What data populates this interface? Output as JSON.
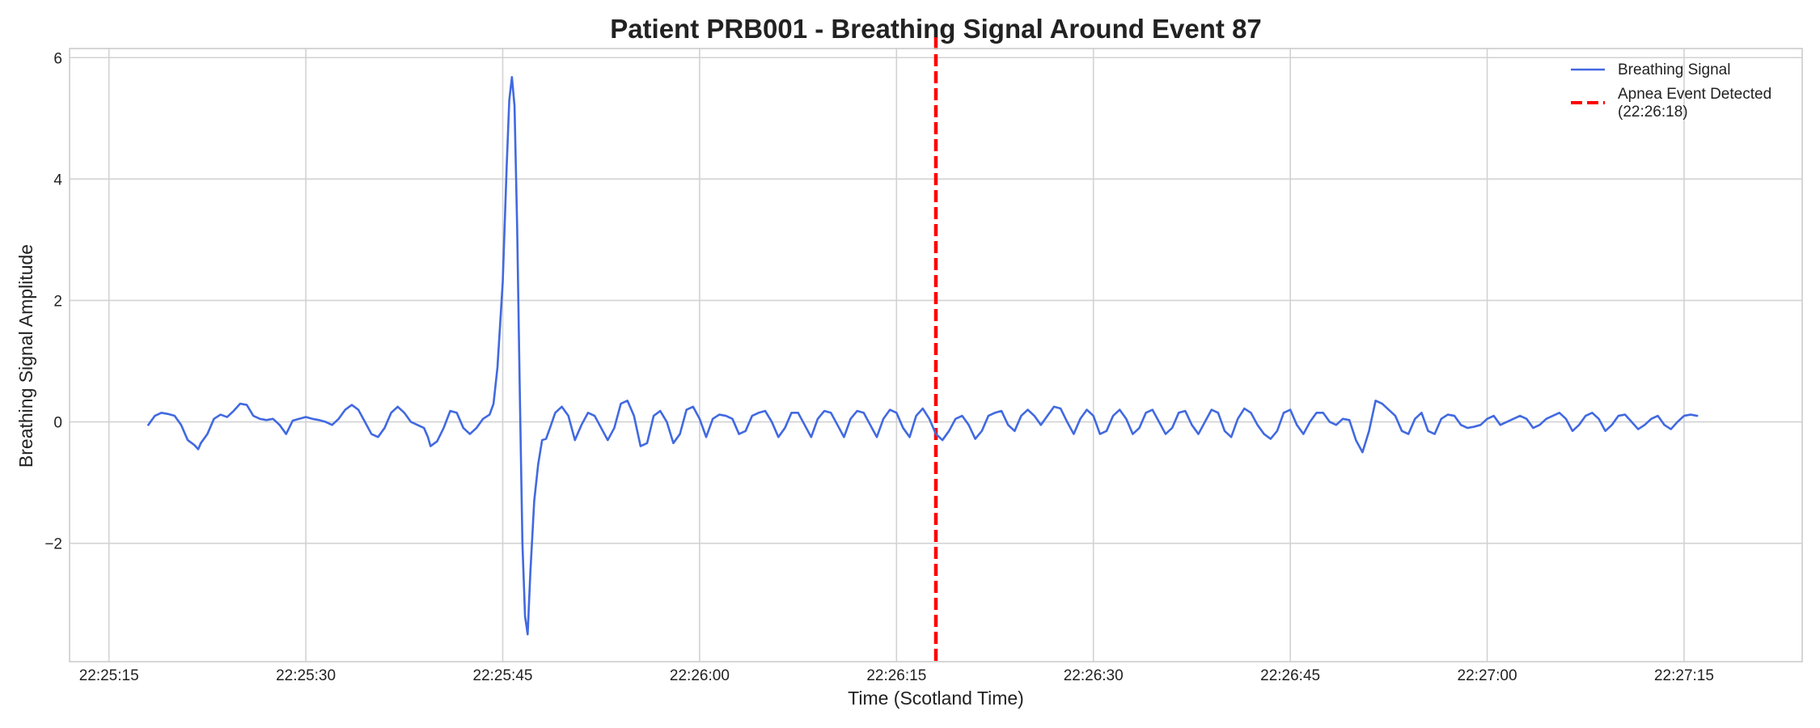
{
  "chart_data": {
    "type": "line",
    "title": "Patient PRB001 - Breathing Signal Around Event 87",
    "xlabel": "Time (Scotland Time)",
    "ylabel": "Breathing Signal Amplitude",
    "x_ticks": [
      "22:25:15",
      "22:25:30",
      "22:25:45",
      "22:26:00",
      "22:26:15",
      "22:26:30",
      "22:26:45",
      "22:27:00",
      "22:27:15"
    ],
    "y_ticks": [
      -2,
      0,
      2,
      4,
      6
    ],
    "y_tick_labels": [
      "−2",
      "0",
      "2",
      "4",
      "6"
    ],
    "xlim": [
      "22:25:12",
      "22:27:24"
    ],
    "ylim": [
      -3.95,
      6.15
    ],
    "grid": true,
    "legend_position": "top-right",
    "series": [
      {
        "name": "Breathing Signal",
        "color": "#4169e1",
        "style": "solid",
        "points": [
          [
            "22:25:18.0",
            -0.05
          ],
          [
            "22:25:18.5",
            0.1
          ],
          [
            "22:25:19.0",
            0.15
          ],
          [
            "22:25:19.5",
            0.13
          ],
          [
            "22:25:20.0",
            0.1
          ],
          [
            "22:25:20.5",
            -0.05
          ],
          [
            "22:25:21.0",
            -0.3
          ],
          [
            "22:25:21.5",
            -0.38
          ],
          [
            "22:25:21.8",
            -0.45
          ],
          [
            "22:25:22.0",
            -0.35
          ],
          [
            "22:25:22.5",
            -0.2
          ],
          [
            "22:25:23.0",
            0.05
          ],
          [
            "22:25:23.5",
            0.12
          ],
          [
            "22:25:24.0",
            0.08
          ],
          [
            "22:25:24.5",
            0.18
          ],
          [
            "22:25:25.0",
            0.3
          ],
          [
            "22:25:25.5",
            0.28
          ],
          [
            "22:25:26.0",
            0.1
          ],
          [
            "22:25:26.5",
            0.05
          ],
          [
            "22:25:27.0",
            0.03
          ],
          [
            "22:25:27.5",
            0.05
          ],
          [
            "22:25:28.0",
            -0.05
          ],
          [
            "22:25:28.5",
            -0.2
          ],
          [
            "22:25:29.0",
            0.02
          ],
          [
            "22:25:29.5",
            0.05
          ],
          [
            "22:25:30.0",
            0.08
          ],
          [
            "22:25:30.5",
            0.05
          ],
          [
            "22:25:31.0",
            0.03
          ],
          [
            "22:25:31.5",
            0.0
          ],
          [
            "22:25:32.0",
            -0.05
          ],
          [
            "22:25:32.5",
            0.05
          ],
          [
            "22:25:33.0",
            0.2
          ],
          [
            "22:25:33.5",
            0.28
          ],
          [
            "22:25:34.0",
            0.2
          ],
          [
            "22:25:34.5",
            0.0
          ],
          [
            "22:25:35.0",
            -0.2
          ],
          [
            "22:25:35.5",
            -0.25
          ],
          [
            "22:25:36.0",
            -0.1
          ],
          [
            "22:25:36.5",
            0.15
          ],
          [
            "22:25:37.0",
            0.25
          ],
          [
            "22:25:37.5",
            0.15
          ],
          [
            "22:25:38.0",
            0.0
          ],
          [
            "22:25:38.5",
            -0.05
          ],
          [
            "22:25:39.0",
            -0.1
          ],
          [
            "22:25:39.3",
            -0.25
          ],
          [
            "22:25:39.5",
            -0.4
          ],
          [
            "22:25:40.0",
            -0.32
          ],
          [
            "22:25:40.5",
            -0.1
          ],
          [
            "22:25:41.0",
            0.18
          ],
          [
            "22:25:41.5",
            0.15
          ],
          [
            "22:25:42.0",
            -0.1
          ],
          [
            "22:25:42.5",
            -0.2
          ],
          [
            "22:25:43.0",
            -0.1
          ],
          [
            "22:25:43.5",
            0.05
          ],
          [
            "22:25:44.0",
            0.12
          ],
          [
            "22:25:44.3",
            0.3
          ],
          [
            "22:25:44.6",
            0.9
          ],
          [
            "22:25:45.0",
            2.3
          ],
          [
            "22:25:45.3",
            4.2
          ],
          [
            "22:25:45.5",
            5.3
          ],
          [
            "22:25:45.7",
            5.68
          ],
          [
            "22:25:45.9",
            5.2
          ],
          [
            "22:25:46.1",
            3.2
          ],
          [
            "22:25:46.3",
            0.5
          ],
          [
            "22:25:46.5",
            -2.0
          ],
          [
            "22:25:46.7",
            -3.2
          ],
          [
            "22:25:46.9",
            -3.5
          ],
          [
            "22:25:47.1",
            -2.5
          ],
          [
            "22:25:47.4",
            -1.3
          ],
          [
            "22:25:47.7",
            -0.7
          ],
          [
            "22:25:48.0",
            -0.3
          ],
          [
            "22:25:48.3",
            -0.28
          ],
          [
            "22:25:48.6",
            -0.1
          ],
          [
            "22:25:49.0",
            0.15
          ],
          [
            "22:25:49.5",
            0.25
          ],
          [
            "22:25:50.0",
            0.1
          ],
          [
            "22:25:50.5",
            -0.3
          ],
          [
            "22:25:51.0",
            -0.05
          ],
          [
            "22:25:51.5",
            0.15
          ],
          [
            "22:25:52.0",
            0.1
          ],
          [
            "22:25:52.5",
            -0.1
          ],
          [
            "22:25:53.0",
            -0.3
          ],
          [
            "22:25:53.5",
            -0.1
          ],
          [
            "22:25:54.0",
            0.3
          ],
          [
            "22:25:54.5",
            0.35
          ],
          [
            "22:25:55.0",
            0.1
          ],
          [
            "22:25:55.5",
            -0.4
          ],
          [
            "22:25:56.0",
            -0.35
          ],
          [
            "22:25:56.5",
            0.1
          ],
          [
            "22:25:57.0",
            0.18
          ],
          [
            "22:25:57.5",
            0.0
          ],
          [
            "22:25:58.0",
            -0.35
          ],
          [
            "22:25:58.5",
            -0.2
          ],
          [
            "22:25:59.0",
            0.2
          ],
          [
            "22:25:59.5",
            0.25
          ],
          [
            "22:26:00.0",
            0.05
          ],
          [
            "22:26:00.5",
            -0.25
          ],
          [
            "22:26:01.0",
            0.05
          ],
          [
            "22:26:01.5",
            0.12
          ],
          [
            "22:26:02.0",
            0.1
          ],
          [
            "22:26:02.5",
            0.05
          ],
          [
            "22:26:03.0",
            -0.2
          ],
          [
            "22:26:03.5",
            -0.15
          ],
          [
            "22:26:04.0",
            0.1
          ],
          [
            "22:26:04.5",
            0.15
          ],
          [
            "22:26:05.0",
            0.18
          ],
          [
            "22:26:05.5",
            0.0
          ],
          [
            "22:26:06.0",
            -0.25
          ],
          [
            "22:26:06.5",
            -0.1
          ],
          [
            "22:26:07.0",
            0.15
          ],
          [
            "22:26:07.5",
            0.15
          ],
          [
            "22:26:08.0",
            -0.05
          ],
          [
            "22:26:08.5",
            -0.25
          ],
          [
            "22:26:09.0",
            0.05
          ],
          [
            "22:26:09.5",
            0.18
          ],
          [
            "22:26:10.0",
            0.15
          ],
          [
            "22:26:10.5",
            -0.05
          ],
          [
            "22:26:11.0",
            -0.25
          ],
          [
            "22:26:11.5",
            0.05
          ],
          [
            "22:26:12.0",
            0.18
          ],
          [
            "22:26:12.5",
            0.15
          ],
          [
            "22:26:13.0",
            -0.05
          ],
          [
            "22:26:13.5",
            -0.25
          ],
          [
            "22:26:14.0",
            0.05
          ],
          [
            "22:26:14.5",
            0.2
          ],
          [
            "22:26:15.0",
            0.15
          ],
          [
            "22:26:15.5",
            -0.1
          ],
          [
            "22:26:16.0",
            -0.25
          ],
          [
            "22:26:16.5",
            0.1
          ],
          [
            "22:26:17.0",
            0.22
          ],
          [
            "22:26:17.5",
            0.05
          ],
          [
            "22:26:18.0",
            -0.2
          ],
          [
            "22:26:18.5",
            -0.3
          ],
          [
            "22:26:19.0",
            -0.15
          ],
          [
            "22:26:19.5",
            0.05
          ],
          [
            "22:26:20.0",
            0.1
          ],
          [
            "22:26:20.5",
            -0.05
          ],
          [
            "22:26:21.0",
            -0.28
          ],
          [
            "22:26:21.5",
            -0.15
          ],
          [
            "22:26:22.0",
            0.1
          ],
          [
            "22:26:22.5",
            0.15
          ],
          [
            "22:26:23.0",
            0.18
          ],
          [
            "22:26:23.5",
            -0.05
          ],
          [
            "22:26:24.0",
            -0.15
          ],
          [
            "22:26:24.5",
            0.1
          ],
          [
            "22:26:25.0",
            0.2
          ],
          [
            "22:26:25.5",
            0.1
          ],
          [
            "22:26:26.0",
            -0.05
          ],
          [
            "22:26:26.5",
            0.1
          ],
          [
            "22:26:27.0",
            0.25
          ],
          [
            "22:26:27.5",
            0.22
          ],
          [
            "22:26:28.0",
            0.0
          ],
          [
            "22:26:28.5",
            -0.2
          ],
          [
            "22:26:29.0",
            0.05
          ],
          [
            "22:26:29.5",
            0.2
          ],
          [
            "22:26:30.0",
            0.1
          ],
          [
            "22:26:30.5",
            -0.2
          ],
          [
            "22:26:31.0",
            -0.15
          ],
          [
            "22:26:31.5",
            0.1
          ],
          [
            "22:26:32.0",
            0.2
          ],
          [
            "22:26:32.5",
            0.05
          ],
          [
            "22:26:33.0",
            -0.2
          ],
          [
            "22:26:33.5",
            -0.1
          ],
          [
            "22:26:34.0",
            0.15
          ],
          [
            "22:26:34.5",
            0.2
          ],
          [
            "22:26:35.0",
            0.0
          ],
          [
            "22:26:35.5",
            -0.2
          ],
          [
            "22:26:36.0",
            -0.1
          ],
          [
            "22:26:36.5",
            0.15
          ],
          [
            "22:26:37.0",
            0.18
          ],
          [
            "22:26:37.5",
            -0.05
          ],
          [
            "22:26:38.0",
            -0.2
          ],
          [
            "22:26:38.5",
            0.0
          ],
          [
            "22:26:39.0",
            0.2
          ],
          [
            "22:26:39.5",
            0.15
          ],
          [
            "22:26:40.0",
            -0.15
          ],
          [
            "22:26:40.5",
            -0.25
          ],
          [
            "22:26:41.0",
            0.05
          ],
          [
            "22:26:41.5",
            0.22
          ],
          [
            "22:26:42.0",
            0.15
          ],
          [
            "22:26:42.5",
            -0.05
          ],
          [
            "22:26:43.0",
            -0.2
          ],
          [
            "22:26:43.5",
            -0.28
          ],
          [
            "22:26:44.0",
            -0.15
          ],
          [
            "22:26:44.5",
            0.15
          ],
          [
            "22:26:45.0",
            0.2
          ],
          [
            "22:26:45.5",
            -0.05
          ],
          [
            "22:26:46.0",
            -0.2
          ],
          [
            "22:26:46.5",
            0.0
          ],
          [
            "22:26:47.0",
            0.15
          ],
          [
            "22:26:47.5",
            0.15
          ],
          [
            "22:26:48.0",
            0.0
          ],
          [
            "22:26:48.5",
            -0.05
          ],
          [
            "22:26:49.0",
            0.05
          ],
          [
            "22:26:49.5",
            0.03
          ],
          [
            "22:26:50.0",
            -0.3
          ],
          [
            "22:26:50.5",
            -0.5
          ],
          [
            "22:26:51.0",
            -0.15
          ],
          [
            "22:26:51.5",
            0.35
          ],
          [
            "22:26:52.0",
            0.3
          ],
          [
            "22:26:52.5",
            0.2
          ],
          [
            "22:26:53.0",
            0.1
          ],
          [
            "22:26:53.5",
            -0.15
          ],
          [
            "22:26:54.0",
            -0.2
          ],
          [
            "22:26:54.5",
            0.05
          ],
          [
            "22:26:55.0",
            0.15
          ],
          [
            "22:26:55.5",
            -0.15
          ],
          [
            "22:26:56.0",
            -0.2
          ],
          [
            "22:26:56.5",
            0.05
          ],
          [
            "22:26:57.0",
            0.12
          ],
          [
            "22:26:57.5",
            0.1
          ],
          [
            "22:26:58.0",
            -0.05
          ],
          [
            "22:26:58.5",
            -0.1
          ],
          [
            "22:26:59.0",
            -0.08
          ],
          [
            "22:26:59.5",
            -0.05
          ],
          [
            "22:27:00.0",
            0.05
          ],
          [
            "22:27:00.5",
            0.1
          ],
          [
            "22:27:01.0",
            -0.05
          ],
          [
            "22:27:01.5",
            0.0
          ],
          [
            "22:27:02.0",
            0.05
          ],
          [
            "22:27:02.5",
            0.1
          ],
          [
            "22:27:03.0",
            0.05
          ],
          [
            "22:27:03.5",
            -0.1
          ],
          [
            "22:27:04.0",
            -0.05
          ],
          [
            "22:27:04.5",
            0.05
          ],
          [
            "22:27:05.0",
            0.1
          ],
          [
            "22:27:05.5",
            0.15
          ],
          [
            "22:27:06.0",
            0.05
          ],
          [
            "22:27:06.5",
            -0.15
          ],
          [
            "22:27:07.0",
            -0.05
          ],
          [
            "22:27:07.5",
            0.1
          ],
          [
            "22:27:08.0",
            0.15
          ],
          [
            "22:27:08.5",
            0.05
          ],
          [
            "22:27:09.0",
            -0.15
          ],
          [
            "22:27:09.5",
            -0.05
          ],
          [
            "22:27:10.0",
            0.1
          ],
          [
            "22:27:10.5",
            0.12
          ],
          [
            "22:27:11.0",
            0.0
          ],
          [
            "22:27:11.5",
            -0.12
          ],
          [
            "22:27:12.0",
            -0.05
          ],
          [
            "22:27:12.5",
            0.05
          ],
          [
            "22:27:13.0",
            0.1
          ],
          [
            "22:27:13.5",
            -0.05
          ],
          [
            "22:27:14.0",
            -0.12
          ],
          [
            "22:27:14.5",
            0.0
          ],
          [
            "22:27:15.0",
            0.1
          ],
          [
            "22:27:15.5",
            0.12
          ],
          [
            "22:27:16.0",
            0.1
          ]
        ]
      }
    ],
    "event_marker": {
      "name": "Apnea Event Detected\n(22:26:18)",
      "label_line1": "Apnea Event Detected",
      "label_line2": "(22:26:18)",
      "time": "22:26:18",
      "color": "#ff0000",
      "style": "dashed"
    }
  }
}
